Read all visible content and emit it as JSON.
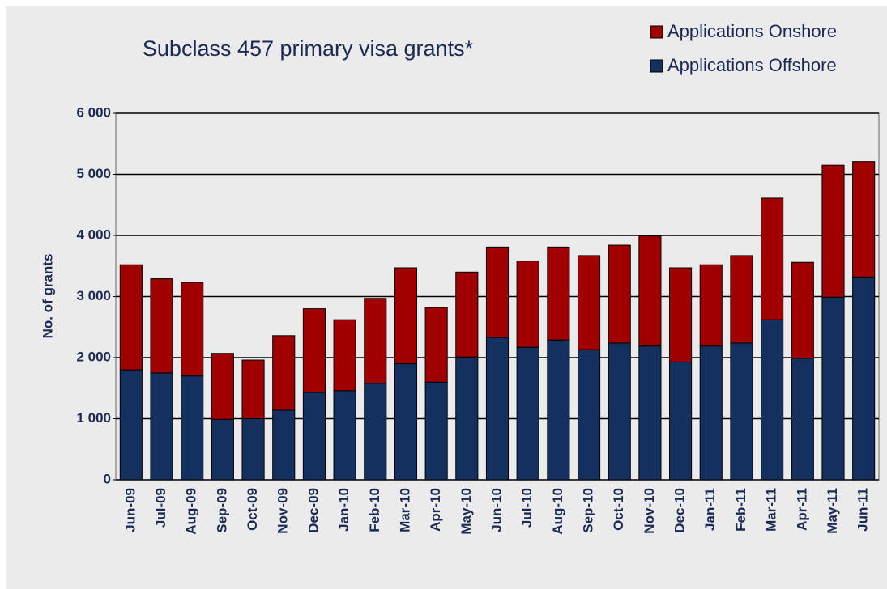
{
  "chart_data": {
    "type": "stacked_bar",
    "title": "Subclass 457 primary visa grants*",
    "y_label": "No. of grants",
    "categories": [
      "Jun-09",
      "Jul-09",
      "Aug-09",
      "Sep-09",
      "Oct-09",
      "Nov-09",
      "Dec-09",
      "Jan-10",
      "Feb-10",
      "Mar-10",
      "Apr-10",
      "May-10",
      "Jun-10",
      "Jul-10",
      "Aug-10",
      "Sep-10",
      "Oct-10",
      "Nov-10",
      "Dec-10",
      "Jan-11",
      "Feb-11",
      "Mar-11",
      "Apr-11",
      "May-11",
      "Jun-11"
    ],
    "series": [
      {
        "name": "Applications Onshore",
        "color": "#a00000",
        "values": [
          1720,
          1540,
          1530,
          1080,
          960,
          1220,
          1370,
          1160,
          1390,
          1570,
          1220,
          1390,
          1480,
          1410,
          1520,
          1540,
          1600,
          1800,
          1540,
          1330,
          1430,
          1990,
          1570,
          2160,
          1890
        ]
      },
      {
        "name": "Applications Offshore",
        "color": "#14305e",
        "values": [
          1800,
          1750,
          1700,
          990,
          1000,
          1140,
          1430,
          1460,
          1580,
          1900,
          1600,
          2010,
          2330,
          2170,
          2290,
          2130,
          2240,
          2190,
          1930,
          2190,
          2240,
          2620,
          1990,
          2990,
          3320
        ]
      }
    ],
    "ylim": [
      0,
      6000
    ],
    "yticks": [
      0,
      {
        "value": 1000,
        "label": "1 000"
      },
      {
        "value": 2000,
        "label": "2 000"
      },
      {
        "value": 3000,
        "label": "3 000"
      },
      {
        "value": 4000,
        "label": "4 000"
      },
      {
        "value": 5000,
        "label": "5 000"
      },
      {
        "value": 6000,
        "label": "6 000"
      }
    ],
    "grid": true,
    "legend": "top-right"
  }
}
